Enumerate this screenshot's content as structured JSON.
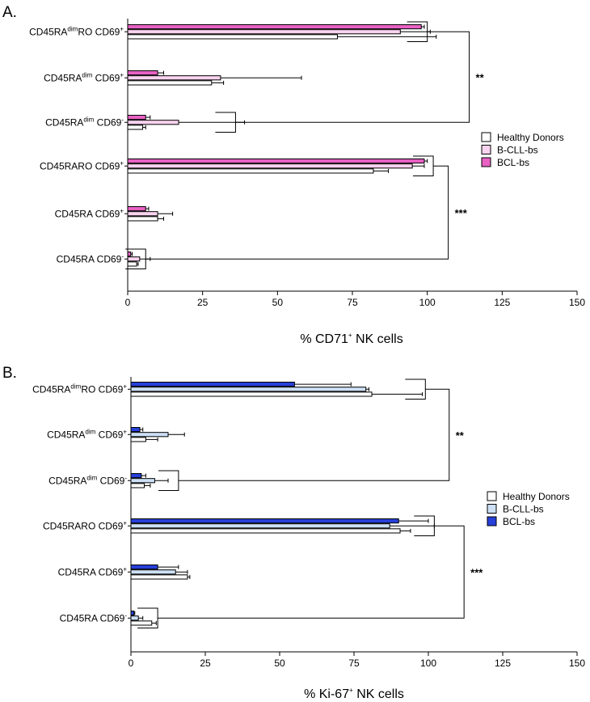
{
  "chart_data": [
    {
      "type": "bar",
      "orientation": "horizontal",
      "panel_label": "A.",
      "categories": [
        {
          "base": "CD45RA",
          "s1": "dim",
          "mid": "RO CD69",
          "s2": "+"
        },
        {
          "base": "CD45RA",
          "s1": "dim",
          "mid": " CD69",
          "s2": "+"
        },
        {
          "base": "CD45RA",
          "s1": "dim",
          "mid": " CD69",
          "s2": "-"
        },
        {
          "base": "CD45RARO CD69",
          "s1": "",
          "mid": "",
          "s2": "+"
        },
        {
          "base": "CD45RA CD69",
          "s1": "",
          "mid": "",
          "s2": "+"
        },
        {
          "base": "CD45RA CD69",
          "s1": "",
          "mid": "",
          "s2": "-"
        }
      ],
      "series": [
        {
          "name": "BCL-bs",
          "color": "#e861c3",
          "values": [
            98,
            10,
            6,
            99,
            6,
            1
          ],
          "errors": [
            1,
            2,
            1.5,
            1,
            1,
            0.5
          ]
        },
        {
          "name": "B-CLL-bs",
          "color": "#f9d3ef",
          "values": [
            91,
            31,
            17,
            95,
            10,
            4
          ],
          "errors": [
            10,
            27,
            22,
            4,
            5,
            3.5
          ]
        },
        {
          "name": "Healthy Donors",
          "color": "#ffffff",
          "values": [
            70,
            28,
            5,
            82,
            10,
            3
          ],
          "errors": [
            33,
            4,
            1,
            5,
            2,
            0.5
          ]
        }
      ],
      "legend_order": [
        "Healthy Donors",
        "B-CLL-bs",
        "BCL-bs"
      ],
      "legend_position": "right",
      "xlim": [
        0,
        150
      ],
      "xticks": [
        "0",
        "25",
        "50",
        "75",
        "100",
        "125",
        "150"
      ],
      "xlabel": {
        "pre": "% CD71",
        "sup": "+",
        "post": " NK cells"
      },
      "significance": [
        "**",
        "***"
      ]
    },
    {
      "type": "bar",
      "orientation": "horizontal",
      "panel_label": "B.",
      "categories": [
        {
          "base": "CD45RA",
          "s1": "dim",
          "mid": "RO CD69",
          "s2": "+"
        },
        {
          "base": "CD45RA",
          "s1": "dim",
          "mid": " CD69",
          "s2": "+"
        },
        {
          "base": "CD45RA",
          "s1": "dim",
          "mid": " CD69",
          "s2": "-"
        },
        {
          "base": "CD45RARO CD69",
          "s1": "",
          "mid": "",
          "s2": "+"
        },
        {
          "base": "CD45RA CD69",
          "s1": "",
          "mid": "",
          "s2": "+"
        },
        {
          "base": "CD45RA CD69",
          "s1": "",
          "mid": "",
          "s2": "-"
        }
      ],
      "series": [
        {
          "name": "BCL-bs",
          "color": "#2740d9",
          "values": [
            55,
            3,
            3.5,
            90,
            9,
            1
          ],
          "errors": [
            19,
            1,
            1.5,
            10,
            7,
            0.3
          ]
        },
        {
          "name": "B-CLL-bs",
          "color": "#cde0f5",
          "values": [
            79,
            12.5,
            8,
            87,
            15,
            2.5
          ],
          "errors": [
            1,
            5.5,
            4.5,
            15,
            4,
            1.5
          ]
        },
        {
          "name": "Healthy Donors",
          "color": "#ffffff",
          "values": [
            81,
            5,
            4.5,
            90.5,
            19,
            7
          ],
          "errors": [
            17,
            4,
            2,
            3.5,
            0.8,
            1.5
          ]
        }
      ],
      "legend_order": [
        "Healthy Donors",
        "B-CLL-bs",
        "BCL-bs"
      ],
      "legend_position": "right",
      "xlim": [
        0,
        150
      ],
      "xticks": [
        "0",
        "25",
        "50",
        "75",
        "100",
        "125",
        "150"
      ],
      "xlabel": {
        "pre": "% Ki-67",
        "sup": "+",
        "post": " NK cells"
      },
      "significance": [
        "**",
        "***"
      ]
    }
  ]
}
